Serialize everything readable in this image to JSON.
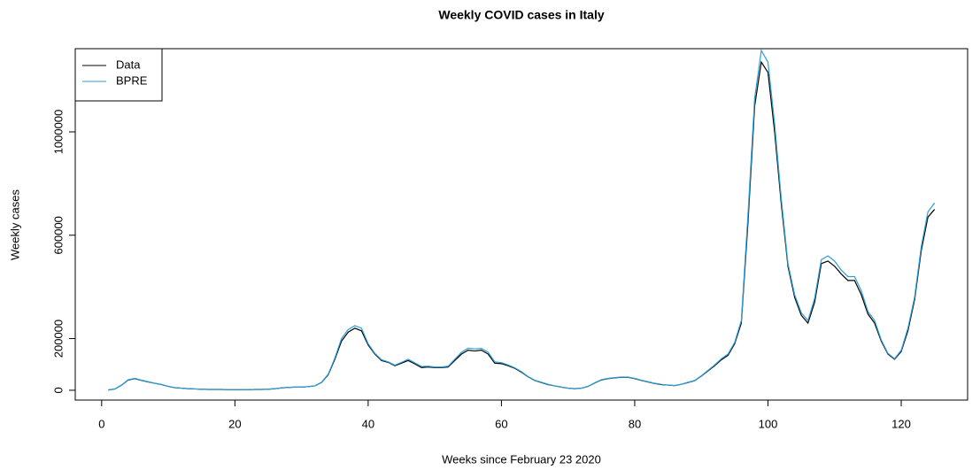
{
  "chart_data": {
    "type": "line",
    "title": "Weekly COVID cases in Italy",
    "x_label": "Weeks since February 23 2020",
    "y_label": "Weekly cases",
    "x": [
      1,
      2,
      3,
      4,
      5,
      6,
      7,
      8,
      9,
      10,
      11,
      12,
      13,
      14,
      15,
      16,
      17,
      18,
      19,
      20,
      21,
      22,
      23,
      24,
      25,
      26,
      27,
      28,
      29,
      30,
      31,
      32,
      33,
      34,
      35,
      36,
      37,
      38,
      39,
      40,
      41,
      42,
      43,
      44,
      45,
      46,
      47,
      48,
      49,
      50,
      51,
      52,
      53,
      54,
      55,
      56,
      57,
      58,
      59,
      60,
      61,
      62,
      63,
      64,
      65,
      66,
      67,
      68,
      69,
      70,
      71,
      72,
      73,
      74,
      75,
      76,
      77,
      78,
      79,
      80,
      81,
      82,
      83,
      84,
      85,
      86,
      87,
      88,
      89,
      90,
      91,
      92,
      93,
      94,
      95,
      96,
      97,
      98,
      99,
      100,
      101,
      102,
      103,
      104,
      105,
      106,
      107,
      108,
      109,
      110,
      111,
      112,
      113,
      114,
      115,
      116,
      117,
      118,
      119,
      120,
      121,
      122,
      123,
      124,
      125
    ],
    "series": [
      {
        "name": "Data",
        "color": "#000000",
        "values": [
          1000,
          5000,
          20000,
          40000,
          45000,
          38000,
          32000,
          27000,
          22000,
          15000,
          10000,
          8000,
          6000,
          5000,
          4000,
          3000,
          3000,
          3000,
          2000,
          2000,
          2000,
          2000,
          3000,
          3000,
          4000,
          6000,
          9000,
          11000,
          12000,
          12000,
          14000,
          17000,
          30000,
          60000,
          120000,
          190000,
          225000,
          240000,
          230000,
          175000,
          140000,
          115000,
          108000,
          95000,
          105000,
          115000,
          102000,
          88000,
          90000,
          88000,
          88000,
          90000,
          115000,
          140000,
          155000,
          152000,
          155000,
          140000,
          105000,
          103000,
          95000,
          85000,
          70000,
          52000,
          38000,
          30000,
          22000,
          17000,
          12000,
          8000,
          6000,
          8000,
          15000,
          28000,
          40000,
          45000,
          48000,
          50000,
          50000,
          45000,
          38000,
          32000,
          26000,
          22000,
          20000,
          18000,
          23000,
          30000,
          37000,
          55000,
          75000,
          95000,
          118000,
          135000,
          180000,
          260000,
          650000,
          1100000,
          1270000,
          1230000,
          1000000,
          720000,
          480000,
          360000,
          290000,
          260000,
          340000,
          490000,
          500000,
          480000,
          450000,
          425000,
          425000,
          370000,
          295000,
          260000,
          190000,
          140000,
          120000,
          150000,
          230000,
          350000,
          540000,
          670000,
          700000
        ]
      },
      {
        "name": "BPRE",
        "color": "#2b9fd8",
        "values": [
          1000,
          5000,
          20000,
          41000,
          46000,
          39000,
          33000,
          27000,
          22000,
          15000,
          10000,
          8000,
          6000,
          5000,
          4000,
          3000,
          3000,
          3000,
          2000,
          2000,
          2000,
          2000,
          3000,
          3000,
          4000,
          6000,
          9000,
          11000,
          12000,
          12000,
          14000,
          17000,
          31000,
          62000,
          125000,
          200000,
          235000,
          250000,
          240000,
          180000,
          143000,
          118000,
          110000,
          97000,
          108000,
          120000,
          106000,
          92000,
          93000,
          90000,
          90000,
          93000,
          120000,
          147000,
          163000,
          160000,
          162000,
          147000,
          110000,
          107000,
          98000,
          87000,
          72000,
          53000,
          39000,
          31000,
          23000,
          17000,
          12000,
          8000,
          6000,
          8000,
          15000,
          29000,
          41000,
          46000,
          49000,
          51000,
          51000,
          46000,
          39000,
          33000,
          27000,
          23000,
          20000,
          18000,
          23000,
          31000,
          38000,
          56000,
          77000,
          98000,
          122000,
          140000,
          185000,
          270000,
          680000,
          1130000,
          1315000,
          1270000,
          1030000,
          740000,
          490000,
          370000,
          300000,
          270000,
          355000,
          505000,
          520000,
          500000,
          465000,
          440000,
          440000,
          385000,
          305000,
          270000,
          195000,
          143000,
          122000,
          155000,
          240000,
          360000,
          555000,
          690000,
          725000
        ]
      }
    ],
    "xlim": [
      -3.96,
      129.96
    ],
    "ylim": [
      -38000,
      1322000
    ],
    "xticks": [
      0,
      20,
      40,
      60,
      80,
      100,
      120
    ],
    "yticks": [
      0,
      200000,
      600000,
      1000000
    ],
    "legend": "topleft"
  }
}
